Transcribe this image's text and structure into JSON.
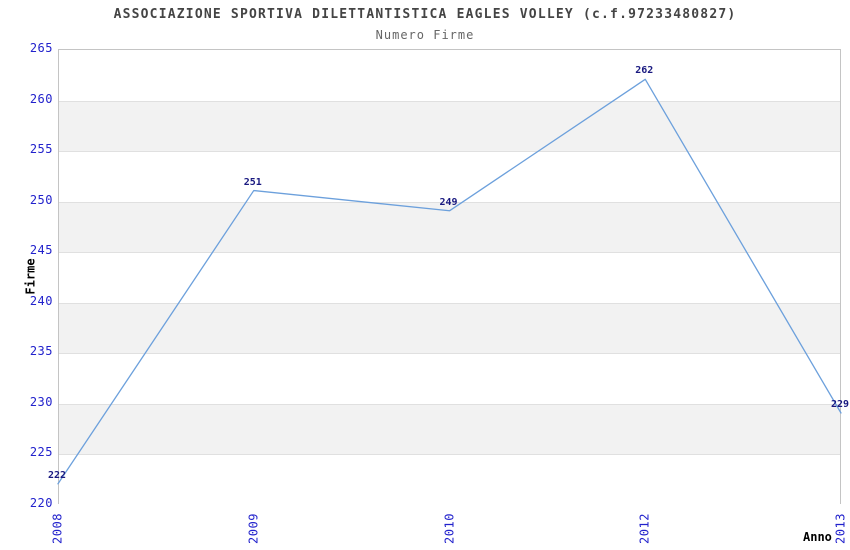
{
  "chart_data": {
    "type": "line",
    "title": "ASSOCIAZIONE SPORTIVA DILETTANTISTICA EAGLES VOLLEY (c.f.97233480827)",
    "subtitle": "Numero Firme",
    "x": [
      "2008",
      "2009",
      "2010",
      "2012",
      "2013"
    ],
    "series": [
      {
        "name": "Numero Firme",
        "values": [
          222,
          251,
          249,
          262,
          229
        ]
      }
    ],
    "xlabel": "Anno",
    "ylabel": "Firme",
    "ylim": [
      220,
      265
    ],
    "ytick_step": 5,
    "ytick_labels": [
      "220",
      "225",
      "230",
      "235",
      "240",
      "245",
      "250",
      "255",
      "260",
      "265"
    ],
    "grid": "horizontal alternating shaded bands, no vertical gridlines",
    "legend": "none",
    "data_labels_shown": true,
    "data_label_values": [
      "222",
      "251",
      "249",
      "262",
      "229"
    ]
  },
  "colors": {
    "line": "#6ca0dc",
    "tick_label": "#2222cc",
    "data_label": "#191980",
    "band": "#f2f2f2",
    "gridline": "#e0e0e0",
    "plot_border": "#c4c4c4",
    "title": "#444444",
    "subtitle": "#666666",
    "axis_label": "#000000",
    "background": "#ffffff"
  }
}
